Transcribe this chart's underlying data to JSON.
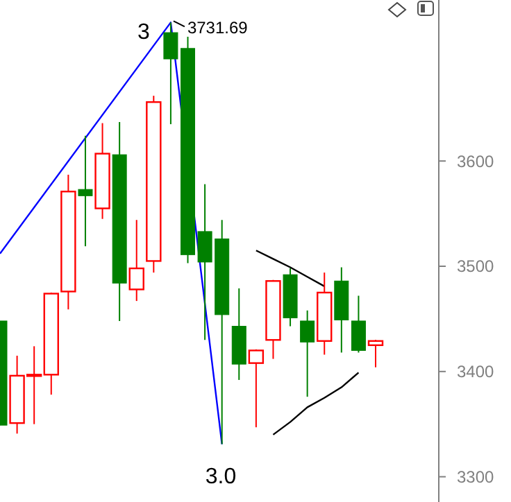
{
  "chart_data": {
    "type": "candlestick",
    "categories": [
      null,
      null,
      null,
      null,
      null,
      null,
      null,
      null,
      null,
      null,
      null,
      null,
      null,
      null,
      null,
      null,
      null,
      null,
      null,
      null,
      null,
      null,
      null
    ],
    "ylim": [
      3276,
      3753
    ],
    "yticks": [
      3300,
      3400,
      3500,
      3600
    ],
    "tick_labels": "y",
    "grid": false,
    "ohlc": [
      [
        3448,
        3448,
        3349,
        3349
      ],
      [
        3351,
        3415,
        3341,
        3396
      ],
      [
        3396,
        3424,
        3350,
        3397
      ],
      [
        3397,
        3475,
        3378,
        3474
      ],
      [
        3476,
        3587,
        3459,
        3571
      ],
      [
        3573,
        3624,
        3519,
        3567
      ],
      [
        3555,
        3636,
        3545,
        3607
      ],
      [
        3606,
        3637,
        3448,
        3484
      ],
      [
        3478,
        3544,
        3467,
        3498
      ],
      [
        3505,
        3662,
        3494,
        3656
      ],
      [
        3722,
        3731.69,
        3635,
        3697
      ],
      [
        3707,
        3718,
        3503,
        3511
      ],
      [
        3533,
        3578,
        3430,
        3504
      ],
      [
        3526,
        3544,
        3331,
        3454
      ],
      [
        3443,
        3479,
        3392,
        3407
      ],
      [
        3408,
        3421,
        3347,
        3420
      ],
      [
        3430,
        3487,
        3412,
        3486
      ],
      [
        3492,
        3498,
        3443,
        3451
      ],
      [
        3448,
        3458,
        3376,
        3428
      ],
      [
        3429,
        3494,
        3416,
        3475
      ],
      [
        3486,
        3499,
        3418,
        3449
      ],
      [
        3448,
        3472,
        3418,
        3420
      ],
      [
        3425,
        3430,
        3404,
        3429
      ]
    ],
    "colors": [
      "#008000",
      "#ff0000",
      "#ff0000",
      "#ff0000",
      "#ff0000",
      "#008000",
      "#ff0000",
      "#008000",
      "#ff0000",
      "#ff0000",
      "#008000",
      "#008000",
      "#008000",
      "#008000",
      "#008000",
      "#ff0000",
      "#ff0000",
      "#008000",
      "#008000",
      "#ff0000",
      "#008000",
      "#008000",
      "#ff0000"
    ],
    "series": [
      {
        "type": "line",
        "color": "#0000ff",
        "values": [
          3512,
          null,
          null,
          null,
          null,
          null,
          null,
          null,
          null,
          null,
          3731.69,
          null,
          null,
          3331,
          null,
          null,
          null,
          null,
          null,
          null,
          null,
          null,
          null
        ]
      },
      {
        "type": "line",
        "color": "#000000",
        "values": [
          null,
          null,
          null,
          null,
          null,
          null,
          null,
          null,
          null,
          null,
          null,
          null,
          null,
          null,
          null,
          3515,
          3507,
          3499,
          3490,
          3481,
          null,
          null,
          null
        ]
      },
      {
        "type": "line",
        "color": "#000000",
        "values": [
          null,
          null,
          null,
          null,
          null,
          null,
          null,
          null,
          null,
          null,
          null,
          null,
          null,
          null,
          null,
          null,
          3340,
          3352,
          3366,
          3375,
          3385,
          3399,
          null
        ]
      }
    ],
    "annotations": [
      "3",
      "3731.69",
      {
        "text": "3.0",
        "y": 3331
      }
    ]
  }
}
